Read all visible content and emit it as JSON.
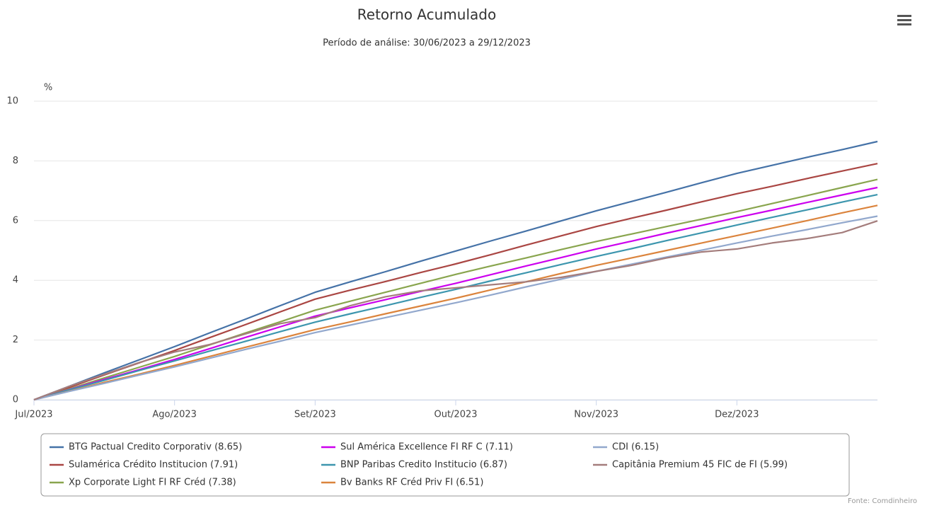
{
  "chart_data": {
    "type": "line",
    "title": "Retorno Acumulado",
    "subtitle": "Período de análise: 30/06/2023 a 29/12/2023",
    "y_label": "%",
    "credit": "Fonte: Comdinheiro",
    "categories": [
      "Jul/2023",
      null,
      null,
      null,
      "Ago/2023",
      null,
      null,
      null,
      "Set/2023",
      null,
      null,
      null,
      "Out/2023",
      null,
      null,
      null,
      "Nov/2023",
      null,
      null,
      null,
      "Dez/2023",
      null,
      null,
      null,
      null
    ],
    "ylim": [
      0,
      10
    ],
    "yticks": [
      0,
      2,
      4,
      6,
      8,
      10
    ],
    "grid": true,
    "legend": "bottom",
    "series": [
      {
        "name": "BTG Pactual Credito Corporativ (8.65)",
        "color": "#4572a7",
        "values": [
          0,
          0.45,
          0.9,
          1.34,
          1.78,
          2.24,
          2.69,
          3.15,
          3.6,
          3.95,
          4.29,
          4.64,
          4.98,
          5.32,
          5.65,
          5.99,
          6.33,
          6.64,
          6.95,
          7.27,
          7.58,
          7.85,
          8.12,
          8.38,
          8.65
        ]
      },
      {
        "name": "Sulamérica Crédito Institucion (7.91)",
        "color": "#aa4643",
        "values": [
          0,
          0.41,
          0.83,
          1.24,
          1.65,
          2.08,
          2.51,
          2.94,
          3.37,
          3.67,
          3.96,
          4.26,
          4.55,
          4.86,
          5.18,
          5.49,
          5.8,
          6.08,
          6.35,
          6.63,
          6.9,
          7.15,
          7.41,
          7.66,
          7.91
        ]
      },
      {
        "name": "Xp Corporate Light FI RF Créd (7.38)",
        "color": "#89a54e",
        "values": [
          0,
          0.36,
          0.73,
          1.09,
          1.45,
          1.84,
          2.23,
          2.61,
          3.0,
          3.3,
          3.6,
          3.9,
          4.2,
          4.48,
          4.75,
          5.03,
          5.3,
          5.55,
          5.8,
          6.05,
          6.3,
          6.57,
          6.84,
          7.11,
          7.38
        ]
      },
      {
        "name": "Sul América Excellence FI RF C (7.11)",
        "color": "#cc00ee",
        "values": [
          0,
          0.34,
          0.68,
          1.01,
          1.35,
          1.71,
          2.08,
          2.44,
          2.8,
          3.08,
          3.35,
          3.63,
          3.9,
          4.19,
          4.48,
          4.76,
          5.05,
          5.31,
          5.58,
          5.84,
          6.1,
          6.35,
          6.61,
          6.86,
          7.11
        ]
      },
      {
        "name": "BNP Paribas Credito Institucio (6.87)",
        "color": "#3d96ae",
        "values": [
          0,
          0.33,
          0.65,
          0.98,
          1.3,
          1.63,
          1.95,
          2.28,
          2.6,
          2.88,
          3.15,
          3.43,
          3.7,
          3.98,
          4.25,
          4.53,
          4.8,
          5.06,
          5.33,
          5.59,
          5.85,
          6.11,
          6.36,
          6.62,
          6.87
        ]
      },
      {
        "name": "Bv Banks RF Créd Priv FI (6.51)",
        "color": "#db843d",
        "values": [
          0,
          0.29,
          0.58,
          0.86,
          1.15,
          1.45,
          1.75,
          2.05,
          2.35,
          2.61,
          2.88,
          3.14,
          3.4,
          3.68,
          3.95,
          4.23,
          4.5,
          4.75,
          5.0,
          5.25,
          5.5,
          5.75,
          6.0,
          6.26,
          6.51
        ]
      },
      {
        "name": "CDI (6.15)",
        "color": "#92a8cd",
        "values": [
          0,
          0.28,
          0.55,
          0.83,
          1.1,
          1.39,
          1.68,
          1.96,
          2.25,
          2.5,
          2.75,
          3.0,
          3.25,
          3.51,
          3.78,
          4.04,
          4.3,
          4.54,
          4.78,
          5.01,
          5.25,
          5.48,
          5.7,
          5.93,
          6.15
        ]
      },
      {
        "name": "Capitânia Premium 45 FIC de FI (5.99)",
        "color": "#a47d7c",
        "values": [
          0,
          0.45,
          0.85,
          1.25,
          1.6,
          1.85,
          2.2,
          2.55,
          2.75,
          3.15,
          3.45,
          3.65,
          3.75,
          3.85,
          3.95,
          4.1,
          4.3,
          4.5,
          4.75,
          4.95,
          5.05,
          5.25,
          5.4,
          5.6,
          5.99
        ]
      }
    ]
  }
}
